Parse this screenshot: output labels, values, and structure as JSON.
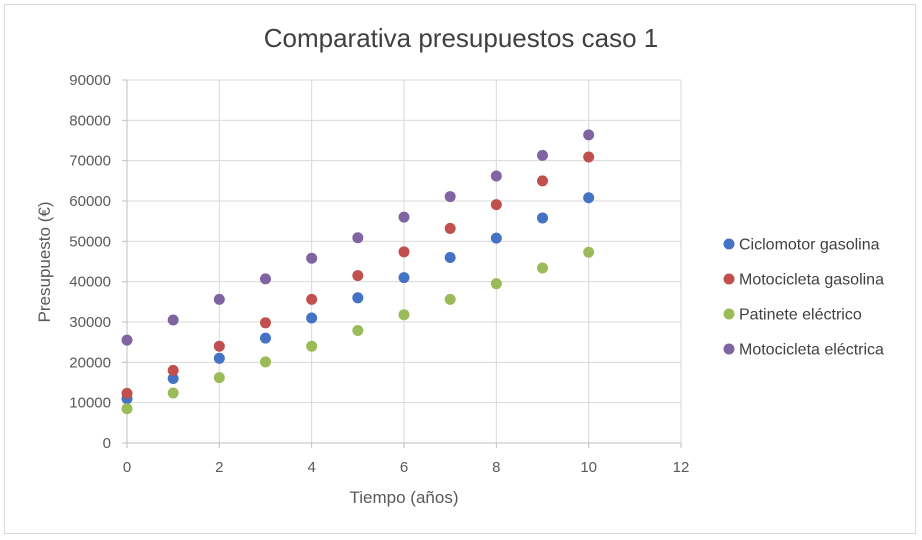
{
  "chart_data": {
    "type": "scatter",
    "title": "Comparativa presupuestos caso 1",
    "xlabel": "Tiempo (años)",
    "ylabel": "Presupuesto (€)",
    "xlim": [
      0,
      12
    ],
    "ylim": [
      0,
      90000
    ],
    "x_ticks": [
      0,
      2,
      4,
      6,
      8,
      10,
      12
    ],
    "y_ticks": [
      0,
      10000,
      20000,
      30000,
      40000,
      50000,
      60000,
      70000,
      80000,
      90000
    ],
    "grid": true,
    "legend_position": "right",
    "x": [
      0,
      1,
      2,
      3,
      4,
      5,
      6,
      7,
      8,
      9,
      10
    ],
    "series": [
      {
        "name": "Ciclomotor gasolina",
        "color": "#4472c4",
        "values": [
          11000,
          16000,
          21000,
          26000,
          31000,
          36000,
          41000,
          46000,
          50800,
          55800,
          60800
        ]
      },
      {
        "name": "Motocicleta gasolina",
        "color": "#c0504d",
        "values": [
          12300,
          18000,
          24000,
          29800,
          35600,
          41500,
          47400,
          53200,
          59100,
          65000,
          70900
        ]
      },
      {
        "name": "Patinete eléctrico",
        "color": "#9bbb59",
        "values": [
          8500,
          12400,
          16200,
          20100,
          24000,
          27900,
          31800,
          35600,
          39500,
          43400,
          47300
        ]
      },
      {
        "name": "Motocicleta eléctrica",
        "color": "#8064a2",
        "values": [
          25500,
          30500,
          35600,
          40700,
          45800,
          50900,
          56000,
          61100,
          66200,
          71300,
          76400
        ]
      }
    ]
  }
}
